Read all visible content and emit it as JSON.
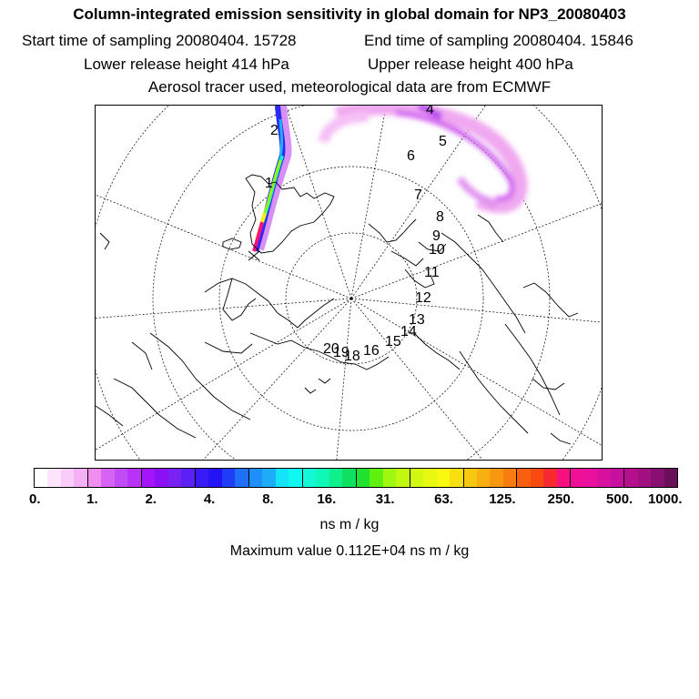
{
  "title": "Column-integrated emission sensitivity in global domain for NP3_20080403",
  "start_sampling": "Start time of sampling 20080404. 15728",
  "end_sampling": "End time of sampling 20080404. 15846",
  "lower_release": "Lower release height  414 hPa",
  "upper_release": "Upper release height  400 hPa",
  "tracer_info": "Aerosol tracer used, meteorological data are from ECMWF",
  "track_labels": [
    "1",
    "2",
    "4",
    "5",
    "6",
    "7",
    "8",
    "9",
    "10",
    "11",
    "12",
    "13",
    "14",
    "15",
    "16",
    "18",
    "19",
    "20"
  ],
  "colorbar": {
    "colors": [
      "#ffffff",
      "#fde6fd",
      "#f9ccf9",
      "#f5b0f5",
      "#f08ef0",
      "#d663f3",
      "#c14cf5",
      "#b832f7",
      "#a314f8",
      "#8a11f5",
      "#7a21f4",
      "#5a20f4",
      "#3a19f7",
      "#2414f5",
      "#1f3cf6",
      "#1f6ff7",
      "#1e8ff8",
      "#1cacf8",
      "#13e4f8",
      "#10f8f0",
      "#14f8d6",
      "#10f8b8",
      "#10f08a",
      "#10e060",
      "#20e030",
      "#60f010",
      "#a0f810",
      "#c0f810",
      "#d0f810",
      "#e8f810",
      "#f8f810",
      "#f8e010",
      "#f8c810",
      "#f8b010",
      "#f89810",
      "#f87c10",
      "#f86010",
      "#f84a10",
      "#f82a30",
      "#f81080",
      "#f01098",
      "#e8109c",
      "#d810a0",
      "#c810a0",
      "#b4108c",
      "#a01080",
      "#881070",
      "#6a1058"
    ],
    "tick_labels": [
      "0.",
      "1.",
      "2.",
      "4.",
      "8.",
      "16.",
      "31.",
      "63.",
      "125.",
      "250.",
      "500.",
      "1000."
    ]
  },
  "units": "ns m / kg",
  "max_value": "Maximum value  0.112E+04 ns m / kg"
}
